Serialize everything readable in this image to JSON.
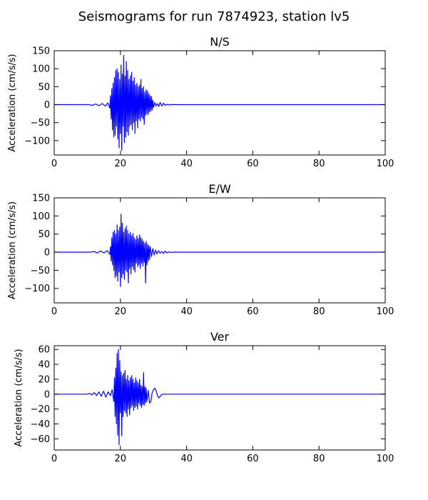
{
  "figure_title": "Seismograms for run 7874923, station lv5",
  "chart_data": [
    {
      "type": "line",
      "title": "N/S",
      "xlabel": "",
      "ylabel": "Acceleration (cm/s/s)",
      "xlim": [
        0,
        100
      ],
      "ylim": [
        -140,
        150
      ],
      "xticks": [
        0,
        20,
        40,
        60,
        80,
        100
      ],
      "yticks": [
        -100,
        -50,
        0,
        50,
        100,
        150
      ],
      "line_color": "#0000ff",
      "grid": false,
      "legend": "none",
      "series": [
        {
          "x": [
            0,
            10.5,
            11.5,
            12.5,
            13.5,
            14.5,
            15.5,
            16.2,
            16.8,
            17.0,
            17.2,
            17.4,
            17.6,
            17.8,
            18.0,
            18.2,
            18.4,
            18.6,
            18.8,
            19.0,
            19.2,
            19.4,
            19.6,
            19.8,
            20.0,
            20.2,
            20.4,
            20.6,
            20.8,
            21.0,
            21.2,
            21.4,
            21.6,
            21.8,
            22.0,
            22.2,
            22.4,
            22.6,
            22.8,
            23.0,
            23.2,
            23.4,
            23.6,
            23.8,
            24.0,
            24.2,
            24.4,
            24.6,
            24.8,
            25.0,
            25.2,
            25.4,
            25.6,
            25.8,
            26.0,
            26.2,
            26.4,
            26.6,
            26.8,
            27.0,
            27.2,
            27.4,
            27.6,
            27.8,
            28.0,
            28.2,
            28.4,
            28.6,
            28.8,
            29.0,
            29.2,
            29.4,
            29.6,
            29.8,
            30.0,
            30.4,
            30.8,
            31.2,
            31.6,
            32.0,
            32.5,
            33.0,
            33.5,
            34.0,
            34.5,
            35.0,
            36.0,
            38.0,
            40.0,
            100
          ],
          "y": [
            0,
            0,
            -2,
            2,
            -3,
            3,
            -4,
            5,
            -10,
            25,
            -40,
            45,
            -70,
            60,
            -90,
            75,
            -85,
            95,
            -60,
            100,
            -95,
            90,
            -120,
            70,
            -80,
            110,
            -127,
            85,
            -60,
            137,
            -105,
            80,
            -90,
            120,
            -75,
            95,
            -85,
            70,
            -60,
            80,
            -55,
            90,
            -70,
            65,
            -50,
            75,
            -80,
            55,
            -45,
            60,
            -65,
            50,
            -40,
            55,
            -45,
            70,
            -35,
            45,
            -40,
            50,
            -55,
            35,
            -30,
            42,
            -25,
            38,
            -28,
            30,
            -20,
            25,
            -18,
            22,
            -15,
            12,
            -8,
            6,
            -4,
            3,
            -5,
            6,
            -4,
            4,
            -2,
            1,
            -1,
            0.5,
            0,
            0,
            0,
            0
          ]
        }
      ]
    },
    {
      "type": "line",
      "title": "E/W",
      "xlabel": "",
      "ylabel": "Acceleration (cm/s/s)",
      "xlim": [
        0,
        100
      ],
      "ylim": [
        -140,
        150
      ],
      "xticks": [
        0,
        20,
        40,
        60,
        80,
        100
      ],
      "yticks": [
        -100,
        -50,
        0,
        50,
        100,
        150
      ],
      "line_color": "#0000ff",
      "grid": false,
      "legend": "none",
      "series": [
        {
          "x": [
            0,
            11.0,
            12.0,
            13.0,
            14.0,
            15.0,
            16.0,
            16.8,
            17.0,
            17.2,
            17.4,
            17.6,
            17.8,
            18.0,
            18.2,
            18.4,
            18.6,
            18.8,
            19.0,
            19.2,
            19.4,
            19.6,
            19.8,
            20.0,
            20.2,
            20.4,
            20.6,
            20.8,
            21.0,
            21.2,
            21.4,
            21.6,
            21.8,
            22.0,
            22.2,
            22.4,
            22.6,
            22.8,
            23.0,
            23.2,
            23.4,
            23.6,
            23.8,
            24.0,
            24.2,
            24.4,
            24.6,
            24.8,
            25.0,
            25.2,
            25.4,
            25.6,
            25.8,
            26.0,
            26.2,
            26.4,
            26.6,
            26.8,
            27.0,
            27.2,
            27.4,
            27.6,
            27.8,
            28.0,
            28.2,
            28.4,
            28.6,
            28.8,
            29.0,
            29.4,
            29.8,
            30.2,
            30.6,
            31.0,
            31.5,
            32.0,
            32.5,
            33.0,
            33.5,
            34.0,
            34.5,
            35.0,
            36.0,
            38.0,
            100
          ],
          "y": [
            0,
            0,
            2,
            -2,
            3,
            -2,
            4,
            -6,
            15,
            -25,
            40,
            -35,
            55,
            -50,
            60,
            -70,
            50,
            -65,
            75,
            -80,
            60,
            -55,
            70,
            -95,
            105,
            -70,
            80,
            -60,
            55,
            -75,
            65,
            -50,
            72,
            -55,
            60,
            -85,
            50,
            -45,
            55,
            -60,
            45,
            -40,
            52,
            -48,
            40,
            -55,
            35,
            -30,
            45,
            -40,
            38,
            -35,
            48,
            -45,
            40,
            -30,
            35,
            -38,
            30,
            -28,
            25,
            -85,
            30,
            -35,
            22,
            -25,
            18,
            -20,
            15,
            -12,
            10,
            -8,
            6,
            -5,
            4,
            -3,
            2,
            -4,
            3,
            -2,
            1,
            -0.5,
            0,
            0,
            0
          ]
        }
      ]
    },
    {
      "type": "line",
      "title": "Ver",
      "xlabel": "",
      "ylabel": "Acceleration (cm/s/s)",
      "xlim": [
        0,
        100
      ],
      "ylim": [
        -75,
        65
      ],
      "xticks": [
        0,
        20,
        40,
        60,
        80,
        100
      ],
      "yticks": [
        -60,
        -40,
        -20,
        0,
        20,
        40,
        60
      ],
      "line_color": "#0000ff",
      "grid": false,
      "legend": "none",
      "series": [
        {
          "x": [
            0,
            10.0,
            10.7,
            11.4,
            12.1,
            12.8,
            13.5,
            14.2,
            14.9,
            15.6,
            16.3,
            17.0,
            17.5,
            18.0,
            18.2,
            18.4,
            18.6,
            18.8,
            19.0,
            19.2,
            19.4,
            19.6,
            19.8,
            20.0,
            20.2,
            20.4,
            20.6,
            20.8,
            21.0,
            21.2,
            21.4,
            21.6,
            21.8,
            22.0,
            22.2,
            22.4,
            22.6,
            22.8,
            23.0,
            23.2,
            23.4,
            23.6,
            23.8,
            24.0,
            24.2,
            24.4,
            24.6,
            24.8,
            25.0,
            25.2,
            25.4,
            25.6,
            25.8,
            26.0,
            26.2,
            26.4,
            26.6,
            26.8,
            27.0,
            27.2,
            27.4,
            27.6,
            27.8,
            28.0,
            28.4,
            28.8,
            29.2,
            29.6,
            30.0,
            30.4,
            30.8,
            31.2,
            31.6,
            32.0,
            32.4,
            32.8,
            33.2,
            33.6,
            34.0,
            34.4,
            34.8,
            35.2,
            36.0,
            38.0,
            100
          ],
          "y": [
            0,
            0,
            1,
            -1,
            2,
            -2,
            3,
            -3,
            4,
            -4,
            3,
            -2,
            6,
            -10,
            22,
            -30,
            35,
            -40,
            55,
            -55,
            60,
            -68,
            45,
            -25,
            30,
            -56,
            25,
            -30,
            28,
            -22,
            32,
            -25,
            20,
            -30,
            25,
            -20,
            18,
            -28,
            22,
            -18,
            25,
            -15,
            20,
            -22,
            15,
            -18,
            22,
            -16,
            18,
            -20,
            15,
            -12,
            20,
            -15,
            12,
            -18,
            10,
            -14,
            29,
            -15,
            10,
            -12,
            8,
            -10,
            5,
            -12,
            -10,
            2,
            6,
            8,
            5,
            -2,
            -5,
            -3,
            -1,
            0,
            0,
            0,
            0,
            0,
            0,
            0,
            0,
            0,
            0
          ]
        }
      ]
    }
  ]
}
